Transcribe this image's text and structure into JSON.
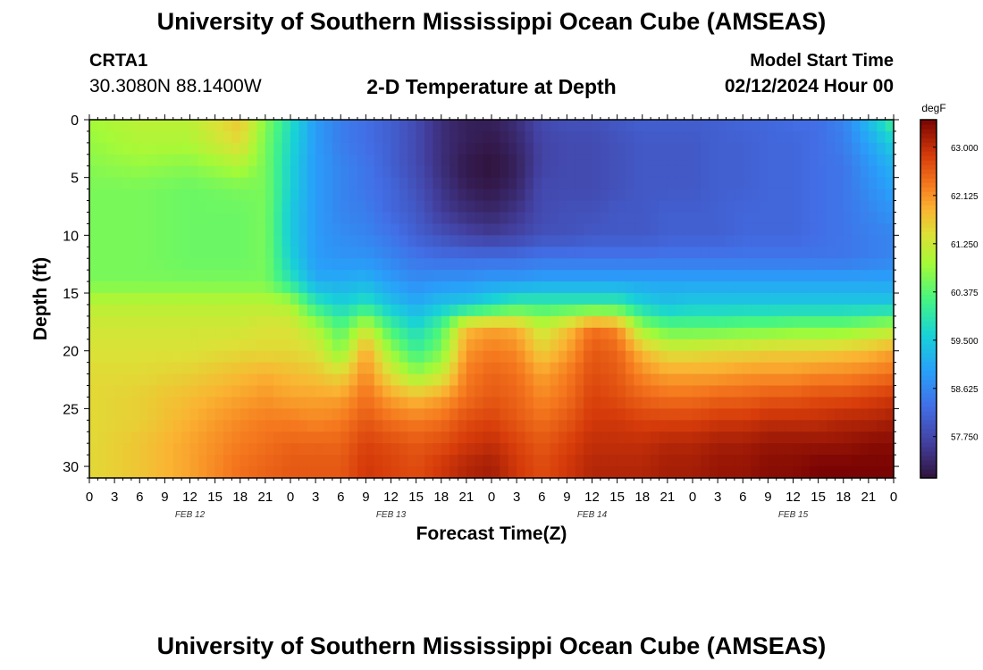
{
  "header": {
    "title": "University of Southern Mississippi Ocean Cube (AMSEAS)",
    "station_id": "CRTA1",
    "coordinates": "30.3080N  88.1400W",
    "plot_title": "2-D Temperature at Depth",
    "model_start_label": "Model Start Time",
    "model_start_value": "02/12/2024 Hour 00"
  },
  "footer": {
    "title": "University of Southern Mississippi Ocean Cube (AMSEAS)"
  },
  "chart_data": {
    "type": "heatmap",
    "title": "2-D Temperature at Depth",
    "xlabel": "Forecast Time(Z)",
    "ylabel": "Depth (ft)",
    "x_unit": "forecast hour",
    "xlim": [
      0,
      96
    ],
    "ylim": [
      0,
      31
    ],
    "y_inverted": true,
    "x_ticks": [
      0,
      3,
      6,
      9,
      12,
      15,
      18,
      21,
      24,
      27,
      30,
      33,
      36,
      39,
      42,
      45,
      48,
      51,
      54,
      57,
      60,
      63,
      66,
      69,
      72,
      75,
      78,
      81,
      84,
      87,
      90,
      93,
      96
    ],
    "x_tick_labels": [
      "0",
      "3",
      "6",
      "9",
      "12",
      "15",
      "18",
      "21",
      "0",
      "3",
      "6",
      "9",
      "12",
      "15",
      "18",
      "21",
      "0",
      "3",
      "6",
      "9",
      "12",
      "15",
      "18",
      "21",
      "0",
      "3",
      "6",
      "9",
      "12",
      "15",
      "18",
      "21",
      "0"
    ],
    "day_labels": [
      {
        "text": "FEB 12",
        "hour": 12
      },
      {
        "text": "FEB 13",
        "hour": 36
      },
      {
        "text": "FEB 14",
        "hour": 60
      },
      {
        "text": "FEB 15",
        "hour": 84
      }
    ],
    "y_ticks": [
      0,
      5,
      10,
      15,
      20,
      25,
      30
    ],
    "y_tick_labels": [
      "0",
      "5",
      "10",
      "15",
      "20",
      "25",
      "30"
    ],
    "colorbar": {
      "unit": "degF",
      "vmin": 57.0,
      "vmax": 63.5,
      "ticks": [
        57.75,
        58.625,
        59.5,
        60.375,
        61.25,
        62.125,
        63.0
      ],
      "tick_labels": [
        "57.750",
        "58.625",
        "59.500",
        "60.375",
        "61.250",
        "62.125",
        "63.000"
      ]
    },
    "grid_hours": [
      0,
      6,
      12,
      18,
      21,
      24,
      27,
      30,
      33,
      36,
      39,
      42,
      45,
      48,
      51,
      54,
      57,
      60,
      63,
      66,
      69,
      72,
      75,
      78,
      81,
      84,
      87,
      90,
      93,
      96
    ],
    "grid_depths": [
      0,
      2,
      4,
      6,
      8,
      10,
      12,
      14,
      16,
      18,
      20,
      22,
      24,
      26,
      28,
      30,
      31
    ],
    "temperatures_degF": [
      [
        60.9,
        61.1,
        61.1,
        61.7,
        60.7,
        59.8,
        58.9,
        58.5,
        58.3,
        58.1,
        57.8,
        57.4,
        57.2,
        57.2,
        57.4,
        57.8,
        57.9,
        57.9,
        58.0,
        58.1,
        58.1,
        58.1,
        58.1,
        58.2,
        58.2,
        58.3,
        58.3,
        58.6,
        59.3,
        60.2
      ],
      [
        60.8,
        61.0,
        61.0,
        61.5,
        60.6,
        59.7,
        58.9,
        58.5,
        58.3,
        58.1,
        57.8,
        57.4,
        57.2,
        57.1,
        57.3,
        57.7,
        57.8,
        57.8,
        57.9,
        58.0,
        58.0,
        58.0,
        58.1,
        58.1,
        58.2,
        58.2,
        58.3,
        58.5,
        59.0,
        59.6
      ],
      [
        60.7,
        60.8,
        60.7,
        61.0,
        60.6,
        59.6,
        58.9,
        58.6,
        58.4,
        58.1,
        57.8,
        57.4,
        57.1,
        57.0,
        57.2,
        57.7,
        57.8,
        57.8,
        57.9,
        58.0,
        58.0,
        58.0,
        58.1,
        58.1,
        58.2,
        58.2,
        58.3,
        58.4,
        58.8,
        59.2
      ],
      [
        60.6,
        60.6,
        60.5,
        60.6,
        60.6,
        59.6,
        58.9,
        58.6,
        58.4,
        58.2,
        57.9,
        57.5,
        57.2,
        57.1,
        57.3,
        57.8,
        57.8,
        57.8,
        57.9,
        58.0,
        58.0,
        58.0,
        58.1,
        58.1,
        58.2,
        58.2,
        58.3,
        58.4,
        58.7,
        59.0
      ],
      [
        60.6,
        60.6,
        60.5,
        60.5,
        60.6,
        59.5,
        58.9,
        58.6,
        58.5,
        58.2,
        58.0,
        57.6,
        57.4,
        57.3,
        57.5,
        57.8,
        57.9,
        57.9,
        58.0,
        58.0,
        58.1,
        58.1,
        58.1,
        58.2,
        58.2,
        58.2,
        58.3,
        58.4,
        58.6,
        58.8
      ],
      [
        60.6,
        60.6,
        60.5,
        60.5,
        60.6,
        59.5,
        58.9,
        58.7,
        58.6,
        58.4,
        58.1,
        57.9,
        57.7,
        57.6,
        57.7,
        57.9,
        57.9,
        58.0,
        58.0,
        58.0,
        58.1,
        58.1,
        58.1,
        58.2,
        58.2,
        58.2,
        58.3,
        58.4,
        58.5,
        58.6
      ],
      [
        60.6,
        60.6,
        60.5,
        60.5,
        60.6,
        59.6,
        58.9,
        58.8,
        58.8,
        58.6,
        58.4,
        58.3,
        58.3,
        58.3,
        58.3,
        58.4,
        58.4,
        58.4,
        58.4,
        58.4,
        58.4,
        58.4,
        58.4,
        58.4,
        58.4,
        58.4,
        58.4,
        58.4,
        58.5,
        58.6
      ],
      [
        60.6,
        60.6,
        60.6,
        60.6,
        60.6,
        59.9,
        59.1,
        59.1,
        59.2,
        58.9,
        58.7,
        58.8,
        58.8,
        58.9,
        58.9,
        59.0,
        59.0,
        59.0,
        59.0,
        59.0,
        59.0,
        59.0,
        59.0,
        59.0,
        59.0,
        59.0,
        59.0,
        59.0,
        59.0,
        59.0
      ],
      [
        61.1,
        61.1,
        61.1,
        61.1,
        61.1,
        61.0,
        60.0,
        59.6,
        59.9,
        59.4,
        59.1,
        59.4,
        59.5,
        59.8,
        60.1,
        60.1,
        60.1,
        60.1,
        60.1,
        59.6,
        59.4,
        59.5,
        59.5,
        59.5,
        59.5,
        59.5,
        59.5,
        59.5,
        59.5,
        59.5
      ],
      [
        61.3,
        61.3,
        61.3,
        61.3,
        61.4,
        61.4,
        61.0,
        60.3,
        61.2,
        60.2,
        59.7,
        60.3,
        61.8,
        62.0,
        61.9,
        61.2,
        61.7,
        62.4,
        62.2,
        60.8,
        60.4,
        60.4,
        60.4,
        60.5,
        60.5,
        60.6,
        60.6,
        60.6,
        60.8,
        61.0
      ],
      [
        61.4,
        61.4,
        61.4,
        61.5,
        61.5,
        61.5,
        61.4,
        60.7,
        62.0,
        60.8,
        60.1,
        60.6,
        62.1,
        62.3,
        62.2,
        61.6,
        62.0,
        62.6,
        62.5,
        61.8,
        61.4,
        61.4,
        61.5,
        61.5,
        61.6,
        61.6,
        61.6,
        61.7,
        61.8,
        62.0
      ],
      [
        61.5,
        61.5,
        61.6,
        61.8,
        61.9,
        61.8,
        61.7,
        61.5,
        62.2,
        61.4,
        60.8,
        61.2,
        62.3,
        62.5,
        62.4,
        62.0,
        62.3,
        62.7,
        62.6,
        62.2,
        62.0,
        62.0,
        62.0,
        62.1,
        62.1,
        62.1,
        62.2,
        62.2,
        62.3,
        62.4
      ],
      [
        61.5,
        61.6,
        61.8,
        62.0,
        62.1,
        62.0,
        62.0,
        62.0,
        62.4,
        62.0,
        61.8,
        62.0,
        62.4,
        62.6,
        62.5,
        62.2,
        62.4,
        62.8,
        62.7,
        62.5,
        62.4,
        62.4,
        62.5,
        62.5,
        62.6,
        62.6,
        62.7,
        62.7,
        62.8,
        62.9
      ],
      [
        61.5,
        61.6,
        61.9,
        62.2,
        62.3,
        62.3,
        62.2,
        62.3,
        62.6,
        62.4,
        62.3,
        62.4,
        62.7,
        62.8,
        62.6,
        62.4,
        62.6,
        62.9,
        62.9,
        62.8,
        62.8,
        62.8,
        62.9,
        62.9,
        63.0,
        63.0,
        63.0,
        63.1,
        63.1,
        63.2
      ],
      [
        61.5,
        61.7,
        62.0,
        62.3,
        62.4,
        62.5,
        62.5,
        62.5,
        62.8,
        62.7,
        62.6,
        62.7,
        62.9,
        63.0,
        62.8,
        62.6,
        62.8,
        63.0,
        63.0,
        63.0,
        63.1,
        63.1,
        63.2,
        63.2,
        63.3,
        63.3,
        63.3,
        63.3,
        63.4,
        63.4
      ],
      [
        61.5,
        61.7,
        62.0,
        62.4,
        62.5,
        62.6,
        62.6,
        62.6,
        62.9,
        62.8,
        62.7,
        62.9,
        63.1,
        63.2,
        62.9,
        62.7,
        62.9,
        63.1,
        63.1,
        63.1,
        63.2,
        63.2,
        63.3,
        63.3,
        63.4,
        63.4,
        63.5,
        63.5,
        63.5,
        63.5
      ],
      [
        61.5,
        61.7,
        62.0,
        62.4,
        62.5,
        62.6,
        62.6,
        62.6,
        62.9,
        62.8,
        62.7,
        62.9,
        63.1,
        63.2,
        62.9,
        62.7,
        62.9,
        63.1,
        63.1,
        63.1,
        63.2,
        63.2,
        63.3,
        63.3,
        63.4,
        63.4,
        63.5,
        63.5,
        63.5,
        63.5
      ]
    ]
  }
}
